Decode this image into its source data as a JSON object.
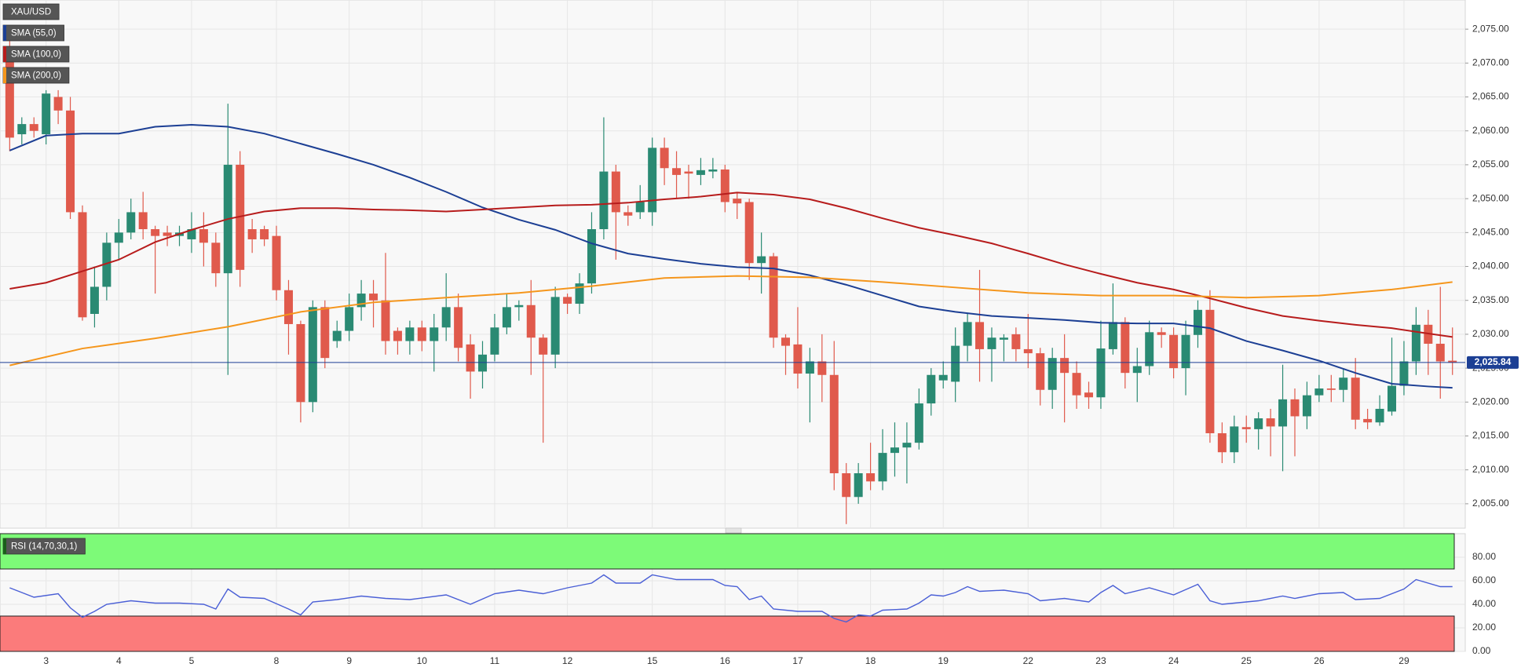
{
  "chart_data": [
    {
      "type": "candlestick",
      "symbol": "XAU/USD",
      "grid": true,
      "up_color": "#2a8a73",
      "down_color": "#e05a4c",
      "categories": [
        null,
        null,
        null,
        "3",
        null,
        null,
        null,
        null,
        null,
        "4",
        null,
        null,
        null,
        null,
        null,
        "5",
        null,
        null,
        null,
        null,
        null,
        null,
        "8",
        null,
        null,
        null,
        null,
        null,
        "9",
        null,
        null,
        null,
        null,
        null,
        "10",
        null,
        null,
        null,
        null,
        null,
        "11",
        null,
        null,
        null,
        null,
        null,
        "12",
        null,
        null,
        null,
        null,
        null,
        null,
        "15",
        null,
        null,
        null,
        null,
        null,
        "16",
        null,
        null,
        null,
        null,
        null,
        "17",
        null,
        null,
        null,
        null,
        null,
        "18",
        null,
        null,
        null,
        null,
        null,
        "19",
        null,
        null,
        null,
        null,
        null,
        null,
        "22",
        null,
        null,
        null,
        null,
        null,
        "23",
        null,
        null,
        null,
        null,
        null,
        "24",
        null,
        null,
        null,
        null,
        null,
        "25",
        null,
        null,
        null,
        null,
        null,
        "26",
        null,
        null,
        null,
        null,
        null,
        null,
        "29",
        null,
        null,
        null,
        null
      ],
      "open": [
        2072,
        2059.5,
        2061,
        2059.5,
        2065,
        2063,
        2048,
        2033,
        2037,
        2043.5,
        2045,
        2048,
        2045.5,
        2045,
        2044.5,
        2044,
        2045.5,
        2043.5,
        2039,
        2055,
        2045.5,
        2045.5,
        2044.5,
        2036.5,
        2031.5,
        2020,
        2034,
        2029,
        2030.5,
        2034,
        2036,
        2035,
        2030.5,
        2029,
        2031,
        2029,
        2031,
        2034,
        2028.5,
        2024.5,
        2027,
        2031,
        2034,
        2034.3,
        2029.5,
        2027,
        2035.5,
        2034.5,
        2037.5,
        2045.5,
        2054,
        2048,
        2048,
        2048,
        2057.5,
        2054.5,
        2054,
        2053.5,
        2054,
        2054.3,
        2050,
        2049.5,
        2040.5,
        2041.5,
        2029.5,
        2028.5,
        2024.2,
        2026,
        2024,
        2009.5,
        2006,
        2009.5,
        2008.3,
        2012.5,
        2013.3,
        2014,
        2019.8,
        2023.2,
        2023,
        2028.3,
        2031.8,
        2027.8,
        2029.2,
        2030,
        2027.8,
        2027.2,
        2021.8,
        2026.5,
        2024.3,
        2021.4,
        2020.7,
        2027.8,
        2031.8,
        2024.3,
        2025.3,
        2030.3,
        2029.9,
        2025,
        2029.9,
        2033.6,
        2015.4,
        2012.6,
        2016.3,
        2016,
        2017.6,
        2016.4,
        2020.4,
        2017.9,
        2021,
        2022,
        2021.8,
        2023.6,
        2017.5,
        2017,
        2018.6,
        2022.4,
        2026,
        2031.4,
        2028.6,
        2026.1
      ],
      "high": [
        2075,
        2062,
        2062,
        2066,
        2066,
        2065,
        2049,
        2040,
        2045,
        2047,
        2050,
        2051,
        2046,
        2046,
        2046,
        2048,
        2048,
        2045,
        2064,
        2057,
        2047,
        2046,
        2046,
        2038,
        2032,
        2035,
        2035,
        2032,
        2036,
        2038,
        2038,
        2042,
        2031,
        2032,
        2032,
        2033,
        2039,
        2036,
        2030,
        2029,
        2033,
        2036,
        2035,
        2038,
        2030,
        2037,
        2036,
        2039,
        2048,
        2062,
        2055,
        2049,
        2052,
        2059,
        2059,
        2057,
        2055,
        2056,
        2056,
        2055,
        2051,
        2050,
        2045,
        2042,
        2030,
        2034,
        2028,
        2030,
        2029,
        2011,
        2011,
        2014,
        2016,
        2017,
        2017,
        2022,
        2025,
        2026,
        2031,
        2033,
        2039.5,
        2031,
        2030,
        2031,
        2033,
        2028,
        2028,
        2030,
        2026,
        2023,
        2032,
        2037.5,
        2032.5,
        2028,
        2032,
        2031,
        2031,
        2032,
        2035,
        2036.5,
        2017,
        2018,
        2018,
        2018.5,
        2019,
        2025.5,
        2022,
        2023,
        2024,
        2024,
        2025,
        2026.5,
        2019,
        2021,
        2029.5,
        2029,
        2034,
        2033.6,
        2037,
        2031
      ],
      "low": [
        2057,
        2058,
        2059,
        2058,
        2061,
        2047,
        2032,
        2031,
        2035,
        2041,
        2044,
        2044,
        2036,
        2043,
        2043,
        2042,
        2040,
        2037,
        2024,
        2037,
        2042,
        2043,
        2035,
        2027,
        2017,
        2018.5,
        2025,
        2028,
        2029,
        2032,
        2031,
        2027,
        2027,
        2027,
        2027.5,
        2024.5,
        2029,
        2026,
        2020.5,
        2022,
        2026,
        2030,
        2032,
        2024,
        2014,
        2025,
        2033,
        2033,
        2036,
        2044,
        2041,
        2046,
        2047,
        2046,
        2052,
        2050,
        2050,
        2052,
        2053,
        2048,
        2047,
        2038,
        2036,
        2028,
        2024,
        2022,
        2017,
        2020,
        2007,
        2002,
        2005,
        2007,
        2007,
        2009,
        2008,
        2013,
        2018,
        2022,
        2020,
        2026,
        2023,
        2023,
        2026,
        2026,
        2025,
        2019.5,
        2019,
        2017,
        2019,
        2019,
        2019,
        2027,
        2022,
        2020,
        2024,
        2028,
        2023.5,
        2021,
        2028,
        2014,
        2011,
        2011,
        2014,
        2013,
        2012,
        2009.8,
        2012,
        2016,
        2020,
        2020,
        2020,
        2016,
        2016,
        2016.5,
        2018,
        2021,
        2024,
        2024,
        2020.5,
        2024
      ],
      "close": [
        2059,
        2061,
        2060,
        2065.5,
        2063,
        2048,
        2032.5,
        2037,
        2043.5,
        2045,
        2048,
        2045.5,
        2044.5,
        2044.5,
        2045,
        2045.5,
        2043.5,
        2039,
        2055,
        2039.5,
        2044,
        2044,
        2036.5,
        2031.5,
        2020,
        2034,
        2026.5,
        2030.5,
        2034,
        2036,
        2035,
        2029,
        2029,
        2031,
        2029,
        2031,
        2034,
        2028,
        2024.5,
        2027,
        2031,
        2034,
        2034.3,
        2029.5,
        2027,
        2035.5,
        2034.5,
        2037.5,
        2045.5,
        2054,
        2048,
        2047.5,
        2049.5,
        2057.5,
        2054.5,
        2053.5,
        2053.7,
        2054.2,
        2054.3,
        2049.5,
        2049.3,
        2040.5,
        2041.5,
        2029.5,
        2028.3,
        2024.2,
        2026,
        2024,
        2009.5,
        2006,
        2009.5,
        2008.3,
        2012.5,
        2013.3,
        2014,
        2019.8,
        2024,
        2024,
        2028.3,
        2031.8,
        2027.8,
        2029.5,
        2029.5,
        2027.8,
        2027.2,
        2021.8,
        2026.5,
        2024.3,
        2021,
        2020.7,
        2027.9,
        2031.8,
        2024.3,
        2025.3,
        2030.3,
        2029.9,
        2025,
        2029.9,
        2033.6,
        2015.4,
        2012.6,
        2016.4,
        2016,
        2017.6,
        2016.4,
        2020.4,
        2017.9,
        2021,
        2022,
        2021.8,
        2023.6,
        2017.4,
        2017,
        2019,
        2022.4,
        2026,
        2031.4,
        2028.6,
        2026,
        2025.84
      ],
      "series": [
        {
          "name": "SMA (55,0)",
          "color": "#1c3f94",
          "x": [
            0,
            3,
            6,
            9,
            12,
            15,
            18,
            21,
            24,
            27,
            30,
            33,
            36,
            39,
            42,
            45,
            48,
            51,
            54,
            57,
            60,
            63,
            66,
            69,
            72,
            75,
            78,
            81,
            84,
            87,
            90,
            93,
            96,
            99,
            102,
            105,
            108,
            111,
            114,
            117,
            119
          ],
          "values": [
            2057.1,
            2059.3,
            2059.6,
            2059.6,
            2060.6,
            2060.9,
            2060.6,
            2059.6,
            2058.1,
            2056.6,
            2055,
            2053.1,
            2051,
            2048.7,
            2046.9,
            2045.4,
            2043.4,
            2041.9,
            2041.1,
            2040.4,
            2039.9,
            2039.7,
            2038.7,
            2037.3,
            2035.7,
            2034.1,
            2033.3,
            2032.7,
            2032.4,
            2032.1,
            2031.7,
            2031.6,
            2031.6,
            2030.9,
            2029,
            2027.6,
            2026.1,
            2024.3,
            2022.7,
            2022.3,
            2022.1
          ]
        },
        {
          "name": "SMA (100,0)",
          "color": "#b71c1c",
          "x": [
            0,
            3,
            6,
            9,
            12,
            15,
            18,
            21,
            24,
            27,
            30,
            33,
            36,
            39,
            42,
            45,
            48,
            51,
            54,
            57,
            60,
            63,
            66,
            69,
            72,
            75,
            78,
            81,
            84,
            87,
            90,
            93,
            96,
            99,
            102,
            105,
            108,
            111,
            114,
            117,
            119
          ],
          "values": [
            2036.7,
            2037.6,
            2039.3,
            2041,
            2043.6,
            2045.4,
            2047,
            2048.1,
            2048.6,
            2048.6,
            2048.4,
            2048.3,
            2048.1,
            2048.4,
            2048.7,
            2049,
            2049.1,
            2049.4,
            2049.9,
            2050.3,
            2050.9,
            2050.6,
            2049.9,
            2048.6,
            2047.1,
            2045.7,
            2044.6,
            2043.4,
            2041.9,
            2040.3,
            2038.9,
            2037.6,
            2036.6,
            2035.3,
            2033.9,
            2032.7,
            2032,
            2031.4,
            2030.9,
            2030.1,
            2029.6
          ]
        },
        {
          "name": "SMA (200,0)",
          "color": "#f5961c",
          "x": [
            0,
            6,
            12,
            18,
            24,
            30,
            36,
            42,
            48,
            54,
            60,
            66,
            72,
            78,
            84,
            90,
            96,
            102,
            108,
            114,
            119
          ],
          "values": [
            2025.4,
            2027.9,
            2029.4,
            2031.1,
            2033.3,
            2034.7,
            2035.4,
            2036.1,
            2037.1,
            2038.3,
            2038.6,
            2038.4,
            2037.7,
            2036.9,
            2036.1,
            2035.7,
            2035.7,
            2035.4,
            2035.7,
            2036.6,
            2037.7
          ]
        }
      ],
      "last": {
        "value": 2025.84,
        "label": "2,025.84"
      },
      "ylim": [
        2001.4,
        2079.3
      ],
      "yticks": [
        {
          "value": 2005,
          "label": "2,005.00"
        },
        {
          "value": 2010,
          "label": "2,010.00"
        },
        {
          "value": 2015,
          "label": "2,015.00"
        },
        {
          "value": 2020,
          "label": "2,020.00"
        },
        {
          "value": 2025,
          "label": "2,025.00"
        },
        {
          "value": 2030,
          "label": "2,030.00"
        },
        {
          "value": 2035,
          "label": "2,035.00"
        },
        {
          "value": 2040,
          "label": "2,040.00"
        },
        {
          "value": 2045,
          "label": "2,045.00"
        },
        {
          "value": 2050,
          "label": "2,050.00"
        },
        {
          "value": 2055,
          "label": "2,055.00"
        },
        {
          "value": 2060,
          "label": "2,060.00"
        },
        {
          "value": 2065,
          "label": "2,065.00"
        },
        {
          "value": 2070,
          "label": "2,070.00"
        },
        {
          "value": 2075,
          "label": "2,075.00"
        }
      ]
    },
    {
      "type": "line",
      "title": "RSI (14,70,30,1)",
      "color": "#4a5fd6",
      "x": [
        0,
        1,
        2,
        4,
        5,
        6,
        7,
        8,
        10,
        12,
        14,
        16,
        17,
        18,
        19,
        21,
        23,
        24,
        25,
        27,
        29,
        31,
        33,
        36,
        38,
        40,
        42,
        44,
        46,
        48,
        49,
        50,
        52,
        53,
        55,
        58,
        59,
        60,
        61,
        62,
        63,
        65,
        67,
        68,
        69,
        70,
        71,
        72,
        74,
        75,
        76,
        77,
        78,
        79,
        80,
        82,
        84,
        85,
        87,
        89,
        90,
        91,
        92,
        94,
        96,
        98,
        99,
        100,
        103,
        105,
        106,
        108,
        110,
        111,
        113,
        115,
        116,
        118,
        119
      ],
      "values": [
        54,
        50,
        46,
        49,
        37,
        29,
        34,
        40,
        43,
        41,
        41,
        40,
        36,
        53,
        46,
        45,
        36,
        31,
        42,
        44,
        47,
        45,
        44,
        48,
        40,
        49,
        52,
        49,
        54,
        58,
        65,
        58,
        58,
        65,
        61,
        61,
        56,
        55,
        44,
        47,
        36,
        34,
        34,
        28,
        25,
        31,
        30,
        35,
        36,
        41,
        48,
        47,
        50,
        55,
        51,
        52,
        49,
        43,
        45,
        42,
        50,
        56,
        49,
        54,
        48,
        57,
        43,
        40,
        43,
        47,
        45,
        49,
        50,
        44,
        45,
        53,
        61,
        55,
        55
      ],
      "zones": [
        {
          "from": 70,
          "to": 100,
          "color": "#7dfa78"
        },
        {
          "from": 0,
          "to": 30,
          "color": "#fb7b7b"
        }
      ],
      "ylim": [
        0,
        100
      ],
      "yticks": [
        {
          "value": 0,
          "label": "0.00"
        },
        {
          "value": 20,
          "label": "20.00"
        },
        {
          "value": 40,
          "label": "40.00"
        },
        {
          "value": 60,
          "label": "60.00"
        },
        {
          "value": 80,
          "label": "80.00"
        }
      ]
    }
  ]
}
